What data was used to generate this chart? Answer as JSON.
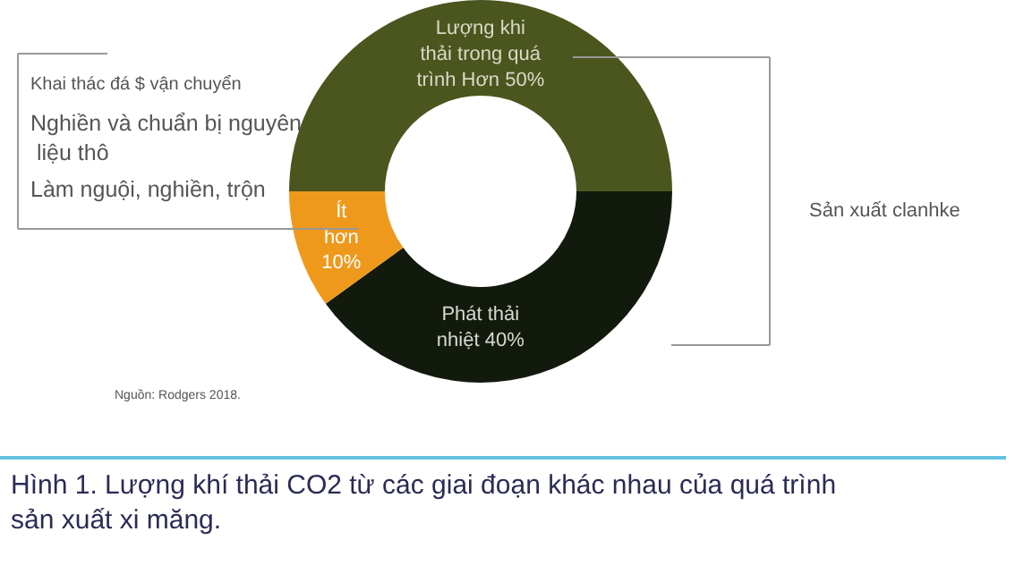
{
  "chart_data": {
    "type": "donut",
    "title": "Hình 1. Lượng khí thải CO2 từ các giai đoạn khác nhau của quá trình sản xuất xi măng.",
    "categories": [
      "Lượng khi\nthải trong quá\ntrình Hơn 50%",
      "Phát thải\nnhiệt 40%",
      "Ít\nhơn\n10%"
    ],
    "values": [
      50,
      40,
      10
    ],
    "colors": [
      "#4b561f",
      "#121a0e",
      "#ee991c"
    ],
    "annotations": [
      "Khai thác đá $ vận chuyển",
      "Nghiền và chuẩn bị nguyên\n liệu thô",
      "Làm nguội, nghiền, trộn",
      "Sản xuất clanhke",
      "Nguồn: Rodgers 2018."
    ],
    "legend": false
  }
}
